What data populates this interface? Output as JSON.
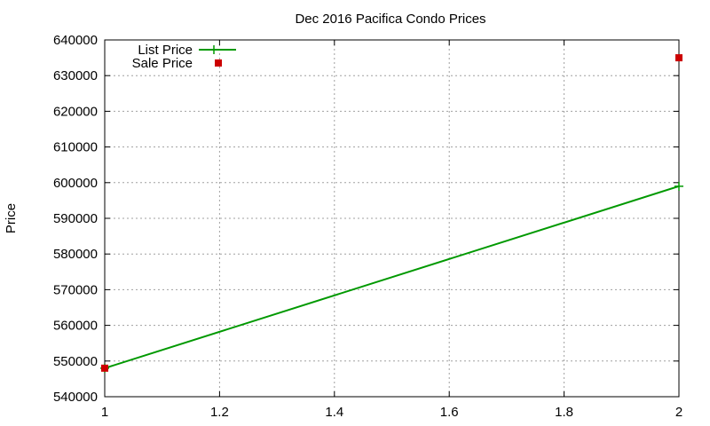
{
  "chart_data": {
    "type": "line",
    "title": "Dec 2016 Pacifica Condo Prices",
    "xlabel": "",
    "ylabel": "Price",
    "xlim": [
      1,
      2
    ],
    "ylim": [
      540000,
      640000
    ],
    "xticks": [
      "1",
      "1.2",
      "1.4",
      "1.6",
      "1.8",
      "2"
    ],
    "yticks": [
      "540000",
      "550000",
      "560000",
      "570000",
      "580000",
      "590000",
      "600000",
      "610000",
      "620000",
      "630000",
      "640000"
    ],
    "grid": true,
    "legend_position": "top-left",
    "series": [
      {
        "name": "List Price",
        "style": "line+plus",
        "color": "#009900",
        "x": [
          1,
          2
        ],
        "y": [
          548000,
          599000
        ]
      },
      {
        "name": "Sale Price",
        "style": "square",
        "color": "#cc0000",
        "x": [
          1,
          2
        ],
        "y": [
          548000,
          635000
        ]
      }
    ]
  }
}
